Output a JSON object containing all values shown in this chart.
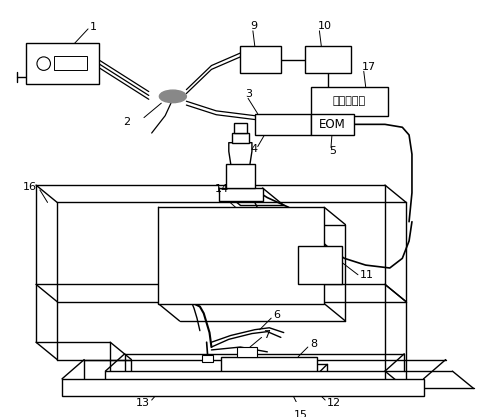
{
  "bg_color": "#ffffff",
  "lw": 1.0,
  "fs": 8,
  "siggen_text": "信号发生器",
  "eom_text": "EOM"
}
